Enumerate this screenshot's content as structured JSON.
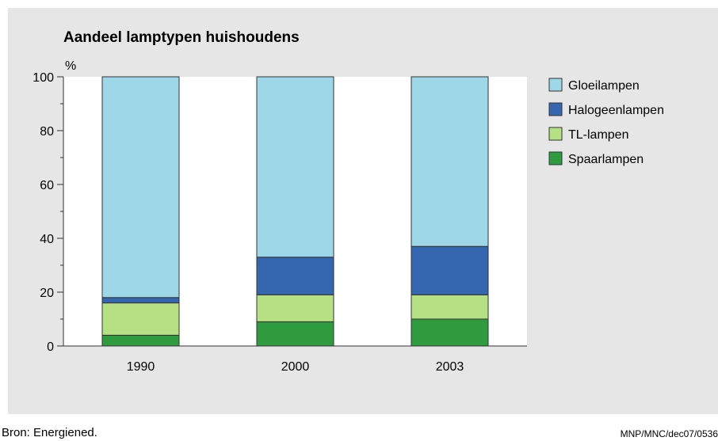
{
  "chart_data": {
    "type": "bar",
    "stacked": true,
    "title": "Aandeel lamptypen huishoudens",
    "ylabel": "%",
    "xlabel": "",
    "ylim": [
      0,
      100
    ],
    "yticks": [
      0,
      20,
      40,
      60,
      80,
      100
    ],
    "categories": [
      "1990",
      "2000",
      "2003"
    ],
    "series": [
      {
        "name": "Spaarlampen",
        "color": "#2e9c3e",
        "values": [
          4,
          9,
          10
        ]
      },
      {
        "name": "TL-lampen",
        "color": "#b5e084",
        "values": [
          12,
          10,
          9
        ]
      },
      {
        "name": "Halogeenlampen",
        "color": "#3566b0",
        "values": [
          2,
          14,
          18
        ]
      },
      {
        "name": "Gloeilampen",
        "color": "#9ed8e8",
        "values": [
          82,
          67,
          63
        ]
      }
    ],
    "legend_order": [
      "Gloeilampen",
      "Halogeenlampen",
      "TL-lampen",
      "Spaarlampen"
    ],
    "legend_placement": "right",
    "grid": false
  },
  "footer": {
    "source": "Bron: Energiened.",
    "code": "MNP/MNC/dec07/0536"
  }
}
